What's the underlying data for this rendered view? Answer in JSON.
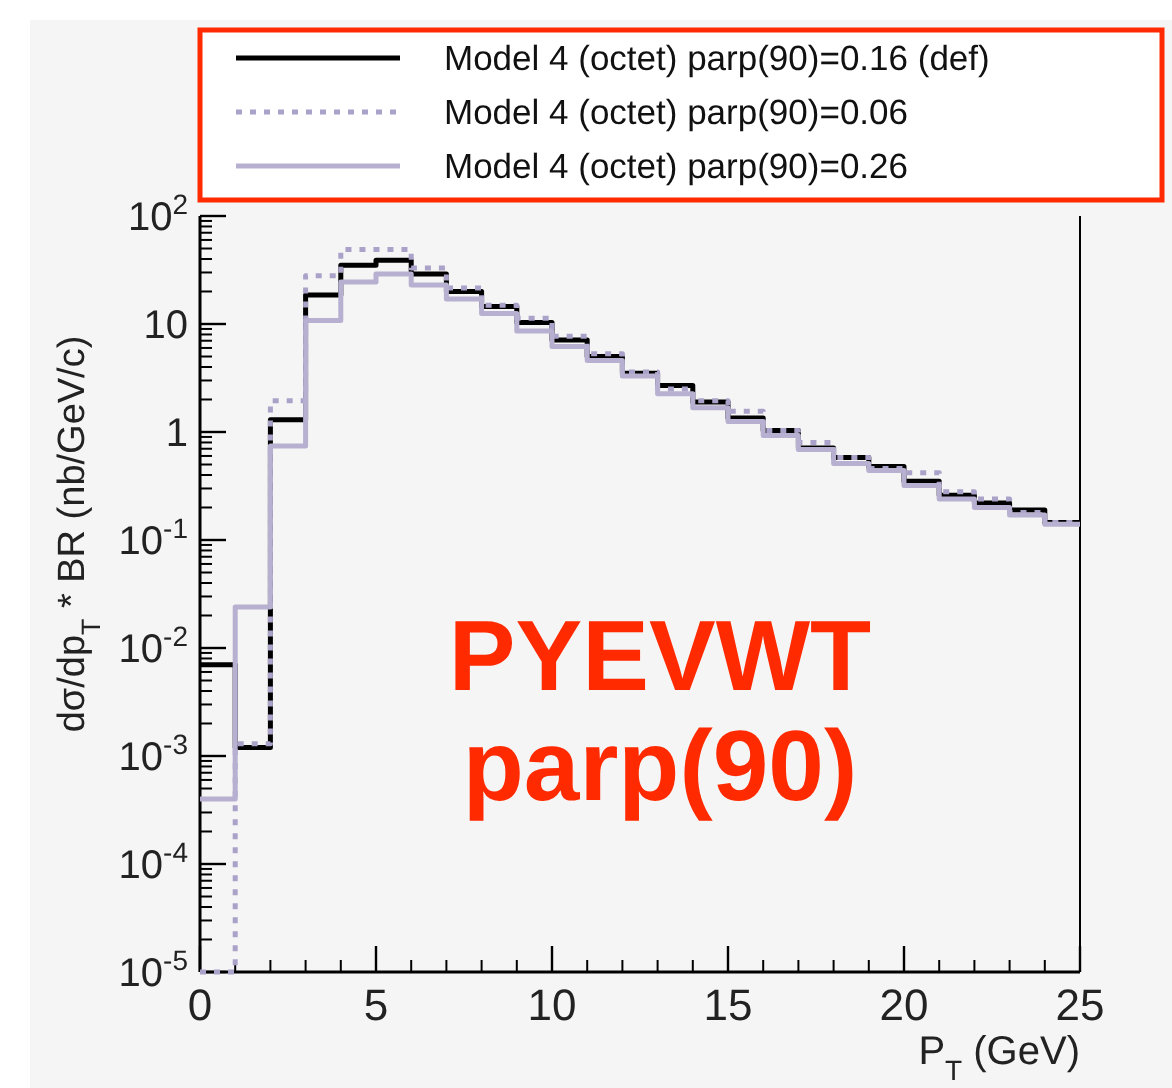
{
  "chart_data": {
    "type": "histogram",
    "xlabel": "P$_{T}$ (GeV)",
    "ylabel": "dσ/dp$_{T}$ * BR (nb/GeV/c)",
    "bins": [
      0,
      1,
      2,
      3,
      4,
      5,
      6,
      7,
      8,
      9,
      10,
      11,
      12,
      13,
      14,
      15,
      16,
      17,
      18,
      19,
      20,
      21,
      22,
      23,
      24,
      25
    ],
    "series": [
      {
        "name": "Model 4 (octet) parp(90)=0.16 (def)",
        "color": "#000000",
        "line_style": "solid",
        "values": [
          0.007,
          0.0012,
          1.3,
          18.6,
          35,
          39,
          29,
          20,
          14.5,
          10.3,
          7.1,
          5.0,
          3.5,
          2.7,
          1.9,
          1.35,
          1.03,
          0.71,
          0.58,
          0.48,
          0.35,
          0.26,
          0.22,
          0.19,
          0.145
        ]
      },
      {
        "name": "Model 4 (octet) parp(90)=0.06",
        "color": "#aaa2c8",
        "line_style": "dotted",
        "values": [
          1e-05,
          0.0013,
          1.95,
          28,
          49,
          49,
          33,
          21.6,
          14.9,
          11.3,
          7.7,
          5.3,
          3.6,
          2.5,
          1.95,
          1.56,
          1.03,
          0.8,
          0.58,
          0.46,
          0.42,
          0.28,
          0.24,
          0.18,
          0.145
        ]
      },
      {
        "name": "Model 4 (octet) parp(90)=0.26",
        "color": "#b8b0d0",
        "line_style": "solid",
        "values": [
          0.0004,
          0.024,
          0.74,
          10.8,
          24.5,
          29,
          23,
          17,
          12.5,
          8.6,
          6.2,
          4.6,
          3.3,
          2.26,
          1.68,
          1.25,
          0.93,
          0.69,
          0.51,
          0.44,
          0.32,
          0.24,
          0.2,
          0.17,
          0.14
        ]
      }
    ],
    "log": "y",
    "xlim": [
      0,
      25
    ],
    "ylim": [
      1e-05,
      100
    ],
    "xticks": [
      0,
      5,
      10,
      15,
      20,
      25
    ],
    "yticks": [
      {
        "value": 1e-05,
        "label": "10$^{-5}$"
      },
      {
        "value": 0.0001,
        "label": "10$^{-4}$"
      },
      {
        "value": 0.001,
        "label": "10$^{-3}$"
      },
      {
        "value": 0.01,
        "label": "10$^{-2}$"
      },
      {
        "value": 0.1,
        "label": "10$^{-1}$"
      },
      1,
      10,
      {
        "value": 100,
        "label": "10$^{2}$"
      }
    ],
    "legend": "top",
    "grid": false,
    "annotations": [
      "PYEVWT",
      "parp(90)"
    ]
  }
}
